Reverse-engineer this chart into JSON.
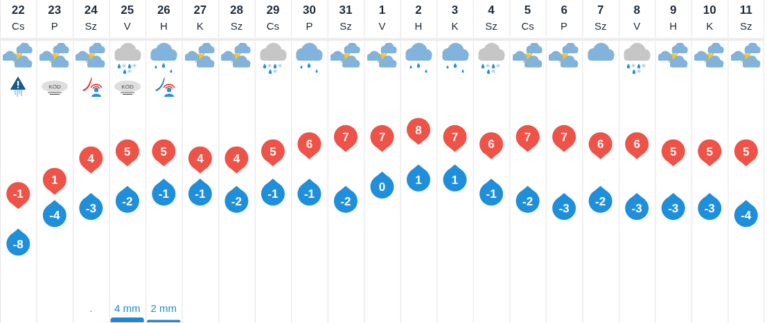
{
  "chart_data": [
    {
      "type": "scatter",
      "categories": [
        "22\nCs",
        "23\nP",
        "24\nSz",
        "25\nV",
        "26\nH",
        "27\nK",
        "28\nSz",
        "29\nCs",
        "30\nP",
        "31\nSz",
        "1\nV",
        "2\nH",
        "3\nK",
        "4\nSz",
        "5\nCs",
        "6\nP",
        "7\nSz",
        "8\nV",
        "9\nH",
        "10\nK",
        "11\nSz"
      ],
      "series": [
        {
          "color": "#ef5246",
          "values": [
            -1,
            1,
            4,
            5,
            5,
            4,
            4,
            5,
            6,
            7,
            7,
            8,
            7,
            6,
            7,
            7,
            6,
            6,
            5,
            5,
            5
          ]
        },
        {
          "color": "#1f8fdb",
          "values": [
            -8,
            -4,
            -3,
            -2,
            -1,
            -1,
            -2,
            -1,
            -1,
            -2,
            0,
            1,
            1,
            -1,
            -2,
            -3,
            -2,
            -3,
            -3,
            -3,
            -4
          ]
        }
      ],
      "data_labels": true,
      "grid": "x",
      "annotations": [
        "KÖD",
        "KÖD"
      ]
    },
    {
      "type": "bar",
      "categories": [
        null,
        null,
        null,
        null,
        null,
        null,
        null,
        null,
        null,
        null,
        null,
        null,
        null,
        null,
        null,
        null,
        null,
        null,
        null,
        null,
        null
      ],
      "series": [
        {
          "color": "#1e88d6",
          "values": [
            null,
            null,
            null,
            4,
            2,
            null,
            null,
            null,
            null,
            null,
            null,
            null,
            null,
            null,
            null,
            null,
            null,
            null,
            null,
            null,
            null
          ],
          "value_labels": [
            null,
            null,
            ".",
            "4 mm",
            "2 mm",
            null,
            null,
            null,
            null,
            null,
            null,
            null,
            null,
            null,
            null,
            null,
            null,
            null,
            null,
            null,
            null
          ]
        }
      ],
      "grid": "x"
    }
  ]
}
